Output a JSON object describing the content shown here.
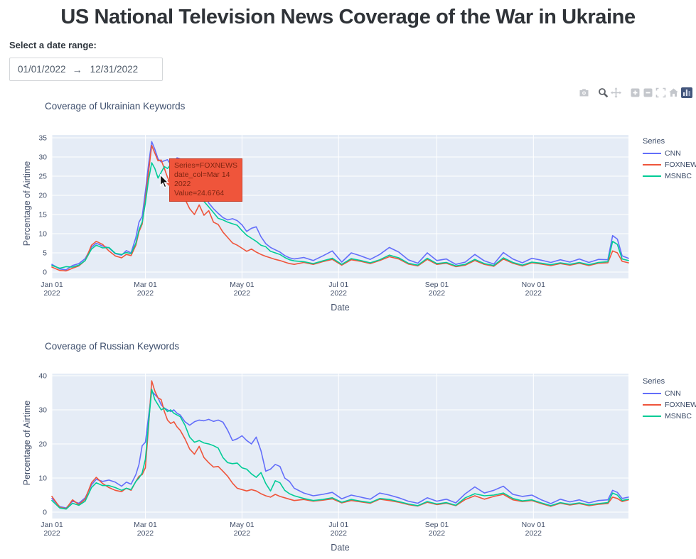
{
  "page": {
    "title": "US National Television News Coverage of the War in Ukraine"
  },
  "date_picker": {
    "label": "Select a date range:",
    "start": "01/01/2022",
    "end": "12/31/2022",
    "arrow": "→"
  },
  "modebar": {
    "buttons": [
      "download-plot-as-png",
      "zoom",
      "pan",
      "zoom-in",
      "zoom-out",
      "autoscale",
      "reset-axes",
      "plotly-logo"
    ],
    "active": "zoom",
    "icon_color": "#c4c7cc",
    "active_color": "#5e6268",
    "logo_color": "#43567c"
  },
  "tooltip": {
    "lines": [
      "Series=FOXNEWS",
      "date_col=Mar 14",
      "2022",
      "Value=24.6764"
    ],
    "bg_color": "#ef553b",
    "border_color": "#c8432e",
    "text_color": "#7f2512"
  },
  "colors": {
    "plot_background": "#e5ecf6",
    "grid": "#ffffff",
    "axis_text": "#44516b",
    "cnn": "#636efa",
    "foxnews": "#ef553b",
    "msnbc": "#00cc96"
  },
  "chart_data": [
    {
      "type": "line",
      "title": "Coverage of Ukrainian Keywords",
      "xlabel": "Date",
      "ylabel": "Percentage of Airtime",
      "legend_title": "Series",
      "ylim": [
        0,
        35
      ],
      "yticks": [
        0,
        5,
        10,
        15,
        20,
        25,
        30,
        35
      ],
      "xticks": [
        {
          "day": 0,
          "line1": "Jan 01",
          "line2": "2022"
        },
        {
          "day": 59,
          "line1": "Mar 01",
          "line2": "2022"
        },
        {
          "day": 120,
          "line1": "May 01",
          "line2": "2022"
        },
        {
          "day": 181,
          "line1": "Jul 01",
          "line2": "2022"
        },
        {
          "day": 243,
          "line1": "Sep 01",
          "line2": "2022"
        },
        {
          "day": 304,
          "line1": "Nov 01",
          "line2": "2022"
        }
      ],
      "days": [
        0,
        5,
        9,
        13,
        17,
        21,
        25,
        28,
        32,
        36,
        40,
        44,
        47,
        50,
        53,
        55,
        57,
        59,
        61,
        63,
        65,
        67,
        69,
        71,
        73,
        75,
        77,
        79,
        81,
        84,
        87,
        90,
        93,
        96,
        99,
        102,
        105,
        108,
        111,
        114,
        117,
        120,
        123,
        126,
        129,
        132,
        135,
        138,
        141,
        144,
        147,
        150,
        153,
        159,
        165,
        171,
        177,
        183,
        189,
        195,
        201,
        207,
        213,
        219,
        225,
        231,
        237,
        243,
        249,
        255,
        261,
        267,
        273,
        279,
        285,
        291,
        297,
        303,
        309,
        315,
        321,
        327,
        333,
        339,
        345,
        351,
        354,
        357,
        360,
        364
      ],
      "series": [
        {
          "name": "CNN",
          "color": "#636efa",
          "values": [
            2.0,
            0.8,
            0.6,
            1.7,
            2.2,
            3.5,
            6.5,
            7.5,
            6.8,
            6.3,
            4.8,
            4.4,
            5.6,
            5.0,
            9.0,
            13.0,
            14.5,
            21.0,
            28.0,
            34.0,
            32.0,
            29.5,
            28.7,
            29.0,
            29.3,
            28.0,
            28.4,
            29.8,
            29.5,
            26.0,
            23.0,
            21.5,
            20.0,
            20.6,
            18.0,
            16.5,
            15.3,
            14.2,
            13.6,
            13.9,
            13.4,
            12.3,
            10.6,
            11.4,
            11.8,
            9.2,
            7.4,
            6.4,
            5.8,
            5.2,
            4.3,
            3.7,
            3.4,
            3.8,
            3.0,
            4.2,
            5.5,
            2.6,
            5.0,
            4.2,
            3.3,
            4.6,
            6.4,
            5.2,
            3.2,
            2.3,
            5.0,
            3.0,
            3.4,
            2.0,
            2.6,
            4.6,
            2.9,
            2.1,
            5.1,
            3.4,
            2.4,
            3.6,
            3.1,
            2.5,
            3.2,
            2.6,
            3.4,
            2.5,
            3.3,
            3.2,
            9.5,
            8.6,
            4.2,
            3.6
          ]
        },
        {
          "name": "FOXNEWS",
          "color": "#ef553b",
          "values": [
            1.3,
            0.4,
            0.3,
            1.0,
            1.6,
            3.0,
            7.0,
            8.0,
            7.2,
            5.5,
            4.2,
            3.7,
            4.6,
            4.3,
            7.0,
            10.5,
            12.5,
            19.0,
            26.0,
            33.0,
            31.0,
            29.0,
            29.2,
            27.0,
            24.7,
            23.0,
            22.0,
            21.5,
            21.0,
            19.0,
            16.5,
            15.0,
            17.5,
            14.8,
            16.0,
            13.0,
            12.4,
            10.4,
            9.0,
            7.6,
            7.0,
            6.2,
            5.4,
            6.0,
            5.2,
            4.6,
            4.1,
            3.7,
            3.3,
            3.0,
            2.6,
            2.2,
            2.0,
            2.5,
            2.0,
            2.7,
            3.3,
            1.8,
            3.2,
            2.8,
            2.2,
            3.0,
            4.0,
            3.4,
            2.1,
            1.6,
            3.3,
            2.0,
            2.3,
            1.4,
            1.8,
            3.0,
            2.0,
            1.5,
            3.4,
            2.3,
            1.6,
            2.4,
            2.1,
            1.7,
            2.2,
            1.8,
            2.3,
            1.7,
            2.3,
            2.4,
            5.5,
            5.0,
            2.8,
            2.4
          ]
        },
        {
          "name": "MSNBC",
          "color": "#00cc96",
          "values": [
            1.7,
            1.0,
            1.4,
            1.3,
            1.8,
            3.0,
            6.0,
            7.0,
            6.3,
            6.4,
            4.9,
            4.6,
            5.1,
            4.8,
            7.5,
            11.0,
            13.0,
            18.0,
            24.0,
            28.5,
            27.0,
            24.5,
            26.0,
            27.5,
            27.0,
            28.0,
            27.6,
            26.0,
            25.0,
            23.5,
            21.0,
            20.0,
            19.3,
            18.4,
            17.0,
            15.5,
            14.0,
            13.6,
            13.0,
            12.6,
            12.2,
            10.8,
            9.6,
            8.8,
            8.0,
            7.0,
            6.6,
            5.4,
            5.0,
            4.6,
            3.8,
            3.2,
            2.9,
            2.7,
            2.2,
            2.9,
            3.6,
            2.0,
            3.5,
            3.0,
            2.4,
            3.2,
            4.4,
            3.7,
            2.3,
            1.8,
            3.6,
            2.2,
            2.5,
            1.6,
            2.0,
            3.3,
            2.2,
            1.7,
            3.7,
            2.5,
            1.8,
            2.6,
            2.3,
            1.9,
            2.4,
            2.0,
            2.5,
            1.9,
            2.5,
            2.7,
            8.0,
            7.2,
            3.4,
            3.0
          ]
        }
      ]
    },
    {
      "type": "line",
      "title": "Coverage of Russian Keywords",
      "xlabel": "Date",
      "ylabel": "Percentage of Airtime",
      "legend_title": "Series",
      "ylim": [
        0,
        40
      ],
      "yticks": [
        0,
        10,
        20,
        30,
        40
      ],
      "xticks": [
        {
          "day": 0,
          "line1": "Jan 01",
          "line2": "2022"
        },
        {
          "day": 59,
          "line1": "Mar 01",
          "line2": "2022"
        },
        {
          "day": 120,
          "line1": "May 01",
          "line2": "2022"
        },
        {
          "day": 181,
          "line1": "Jul 01",
          "line2": "2022"
        },
        {
          "day": 243,
          "line1": "Sep 01",
          "line2": "2022"
        },
        {
          "day": 304,
          "line1": "Nov 01",
          "line2": "2022"
        }
      ],
      "days": [
        0,
        5,
        9,
        13,
        17,
        21,
        25,
        28,
        32,
        36,
        40,
        44,
        47,
        50,
        53,
        55,
        57,
        59,
        61,
        63,
        65,
        67,
        69,
        71,
        73,
        75,
        77,
        79,
        81,
        84,
        87,
        90,
        93,
        96,
        99,
        102,
        105,
        108,
        111,
        114,
        117,
        120,
        123,
        126,
        129,
        132,
        135,
        138,
        141,
        144,
        147,
        150,
        153,
        159,
        165,
        171,
        177,
        183,
        189,
        195,
        201,
        207,
        213,
        219,
        225,
        231,
        237,
        243,
        249,
        255,
        261,
        267,
        273,
        279,
        285,
        291,
        297,
        303,
        309,
        315,
        321,
        327,
        333,
        339,
        345,
        351,
        354,
        357,
        360,
        364
      ],
      "series": [
        {
          "name": "CNN",
          "color": "#636efa",
          "values": [
            4.0,
            1.6,
            1.2,
            3.2,
            2.6,
            4.2,
            8.0,
            9.6,
            9.0,
            9.4,
            8.8,
            7.6,
            8.8,
            8.2,
            11.0,
            14.0,
            19.5,
            20.5,
            28.0,
            35.5,
            34.5,
            33.5,
            31.5,
            30.5,
            30.0,
            29.5,
            30.0,
            29.0,
            28.5,
            26.5,
            25.5,
            26.5,
            27.0,
            26.8,
            27.2,
            26.6,
            27.0,
            26.4,
            24.0,
            21.0,
            21.5,
            22.4,
            21.0,
            20.0,
            22.0,
            18.0,
            12.0,
            12.6,
            14.0,
            13.4,
            10.0,
            9.0,
            7.0,
            5.6,
            4.8,
            5.2,
            5.8,
            3.9,
            5.0,
            4.4,
            3.8,
            5.6,
            5.0,
            4.2,
            3.2,
            2.6,
            4.2,
            3.2,
            3.8,
            2.7,
            5.4,
            7.4,
            5.6,
            6.4,
            7.6,
            5.2,
            4.6,
            5.0,
            3.6,
            2.5,
            3.8,
            3.0,
            3.6,
            2.7,
            3.4,
            3.6,
            6.4,
            5.8,
            4.0,
            4.4
          ]
        },
        {
          "name": "FOXNEWS",
          "color": "#ef553b",
          "values": [
            4.6,
            1.4,
            1.0,
            3.6,
            2.2,
            3.8,
            8.6,
            10.2,
            8.4,
            7.2,
            6.4,
            6.0,
            7.0,
            6.4,
            9.0,
            10.5,
            11.0,
            13.0,
            25.0,
            38.5,
            35.5,
            33.5,
            33.0,
            29.5,
            27.0,
            26.0,
            26.5,
            25.0,
            24.0,
            21.5,
            18.5,
            17.0,
            19.3,
            16.0,
            14.5,
            13.2,
            13.4,
            12.0,
            10.5,
            8.5,
            7.0,
            6.6,
            6.2,
            6.6,
            6.2,
            5.4,
            4.8,
            4.4,
            5.2,
            4.6,
            4.2,
            3.8,
            3.4,
            3.7,
            3.2,
            3.5,
            3.9,
            2.7,
            3.4,
            3.0,
            2.6,
            3.8,
            3.4,
            2.9,
            2.2,
            1.8,
            2.9,
            2.2,
            2.6,
            1.9,
            3.7,
            4.8,
            3.8,
            4.6,
            5.2,
            3.6,
            3.1,
            3.4,
            2.5,
            1.7,
            2.6,
            2.1,
            2.5,
            1.9,
            2.3,
            2.5,
            4.4,
            4.0,
            3.1,
            3.6
          ]
        },
        {
          "name": "MSNBC",
          "color": "#00cc96",
          "values": [
            3.4,
            1.2,
            0.9,
            2.6,
            2.0,
            3.2,
            7.2,
            8.6,
            7.8,
            7.8,
            7.2,
            6.4,
            7.0,
            6.6,
            9.0,
            10.0,
            11.5,
            15.5,
            26.0,
            36.0,
            33.0,
            31.5,
            30.0,
            30.5,
            29.5,
            30.0,
            29.0,
            28.5,
            28.0,
            25.5,
            22.0,
            20.5,
            21.0,
            20.3,
            20.0,
            19.5,
            18.8,
            16.0,
            14.5,
            14.2,
            14.4,
            13.0,
            12.6,
            11.2,
            10.2,
            11.6,
            8.4,
            6.2,
            9.2,
            8.6,
            6.4,
            5.4,
            4.8,
            4.0,
            3.4,
            3.7,
            4.2,
            2.9,
            3.7,
            3.2,
            2.8,
            4.0,
            3.7,
            3.1,
            2.4,
            1.9,
            3.1,
            2.4,
            2.8,
            2.0,
            4.2,
            5.4,
            4.8,
            5.0,
            5.6,
            4.0,
            3.3,
            3.6,
            2.7,
            1.9,
            2.8,
            2.3,
            2.7,
            2.1,
            2.5,
            2.8,
            5.6,
            5.0,
            3.4,
            3.8
          ]
        }
      ]
    }
  ]
}
